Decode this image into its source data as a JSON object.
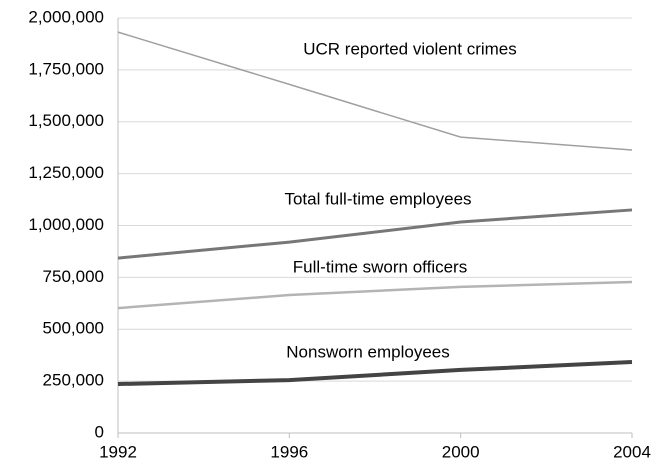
{
  "chart_data": {
    "type": "line",
    "x": [
      1992,
      1996,
      2000,
      2004
    ],
    "xlim": [
      1992,
      2004
    ],
    "xticks": [
      1992,
      1996,
      2000,
      2004
    ],
    "ylim": [
      0,
      2000000
    ],
    "yticks": [
      0,
      {
        "value": 250000,
        "label": "250,000"
      },
      {
        "value": 500000,
        "label": "500,000"
      },
      {
        "value": 750000,
        "label": "750,000"
      },
      {
        "value": 1000000,
        "label": "1,000,000"
      },
      {
        "value": 1250000,
        "label": "1,250,000"
      },
      {
        "value": 1500000,
        "label": "1,500,000"
      },
      {
        "value": 1750000,
        "label": "1,750,000"
      },
      {
        "value": 2000000,
        "label": "2,000,000"
      }
    ],
    "grid": true,
    "series": [
      {
        "name": "UCR reported violent crimes",
        "color": "#a0a0a0",
        "values": [
          1932000,
          1680000,
          1426000,
          1364000
        ]
      },
      {
        "name": "Total full-time employees",
        "color": "#777777",
        "values": [
          843000,
          920000,
          1017000,
          1075000
        ]
      },
      {
        "name": "Full-time sworn officers",
        "color": "#b4b4b4",
        "values": [
          602000,
          665000,
          704000,
          728000
        ]
      },
      {
        "name": "Nonsworn employees",
        "color": "#444444",
        "values": [
          236000,
          255000,
          304000,
          342000
        ]
      }
    ]
  }
}
